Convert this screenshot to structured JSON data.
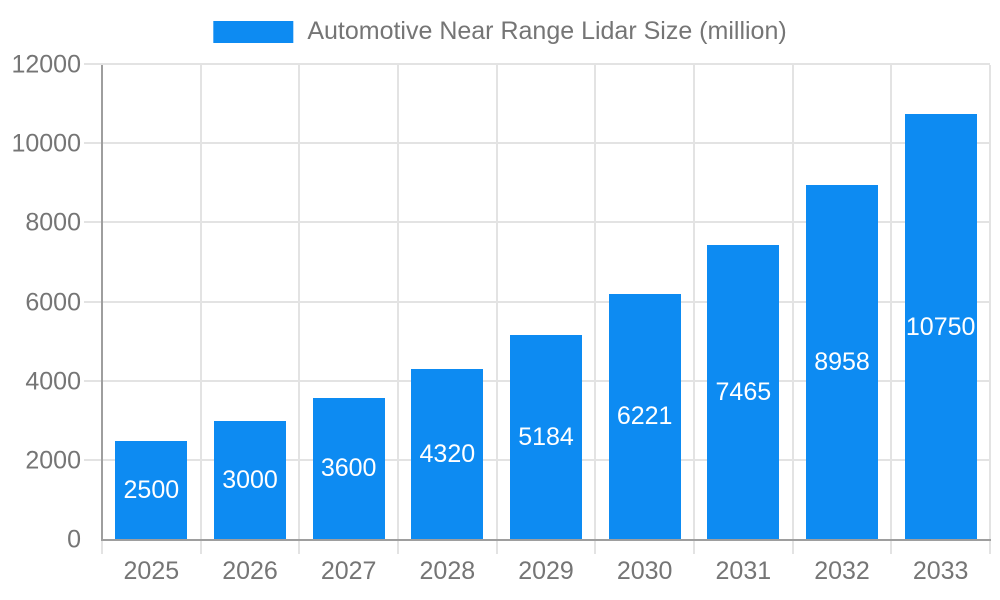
{
  "chart_data": {
    "type": "bar",
    "title": "Automotive Near Range Lidar Size (million)",
    "categories": [
      "2025",
      "2026",
      "2027",
      "2028",
      "2029",
      "2030",
      "2031",
      "2032",
      "2033"
    ],
    "values": [
      2500,
      3000,
      3600,
      4320,
      5184,
      6221,
      7465,
      8958,
      10750
    ],
    "xlabel": "",
    "ylabel": "",
    "ylim": [
      0,
      12000
    ],
    "ytick_step": 2000,
    "yticks": [
      "0",
      "2000",
      "4000",
      "6000",
      "8000",
      "10000",
      "12000"
    ],
    "grid": "on",
    "legend_position": "top",
    "legend_entries": [
      "Automotive Near Range Lidar Size (million)"
    ],
    "bar_labels_inside": true
  },
  "colors": {
    "bar": "#0D8BF2",
    "bar_label_text": "#ffffff",
    "axis_line": "#9e9e9e",
    "gridline": "#e3e3e3",
    "tick_text": "#757575",
    "background": "#ffffff"
  }
}
